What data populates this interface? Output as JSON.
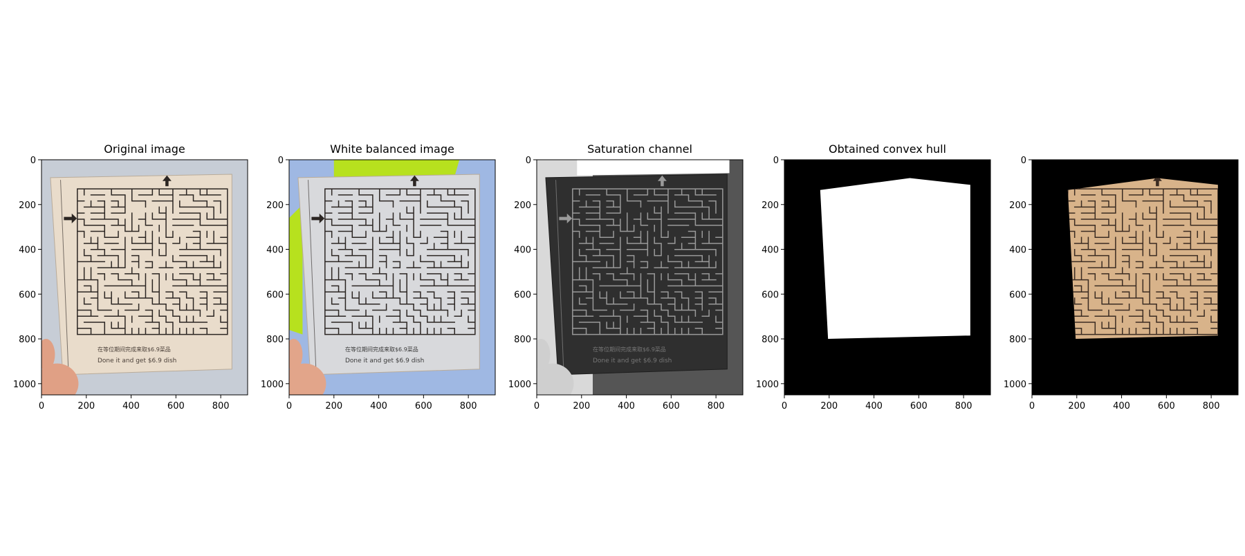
{
  "figure": {
    "panels": [
      {
        "title": "Original image",
        "kind": "original"
      },
      {
        "title": "White balanced image",
        "kind": "white_balanced"
      },
      {
        "title": "Saturation channel",
        "kind": "saturation"
      },
      {
        "title": "Obtained convex hull",
        "kind": "hull_mask"
      },
      {
        "title": "",
        "kind": "masked"
      }
    ],
    "x_ticks": [
      "0",
      "200",
      "400",
      "600",
      "800"
    ],
    "y_ticks": [
      "0",
      "200",
      "400",
      "600",
      "800",
      "1000"
    ],
    "image_width": 920,
    "image_height": 1050,
    "card_text": {
      "line1": "在等位期间完成来取$6.9菜品",
      "line2": "Done it and get $6.9 dish"
    },
    "hull_points": [
      [
        160,
        135
      ],
      [
        560,
        82
      ],
      [
        830,
        112
      ],
      [
        830,
        785
      ],
      [
        195,
        800
      ]
    ],
    "colors": {
      "card_original": "#e9dccb",
      "bg_original": "#c7cdd6",
      "card_white_balanced": "#d8d9dc",
      "bg_white_balanced": "#9fb8e3",
      "green_patch": "#b7e11e",
      "card_masked": "#d8b38a",
      "maze_line": "#2b2522"
    }
  }
}
